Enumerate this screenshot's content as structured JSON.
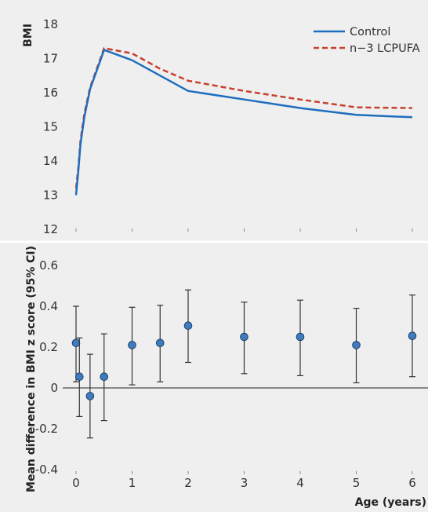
{
  "chart_data": [
    {
      "type": "line",
      "title": "",
      "xlabel": "",
      "ylabel": "BMI",
      "ylim": [
        12,
        18
      ],
      "yticks": [
        "12",
        "13",
        "14",
        "15",
        "16",
        "17",
        "18"
      ],
      "xlim": [
        -0.15,
        6.3
      ],
      "legend_position": "top-right",
      "grid": false,
      "series": [
        {
          "name": "Control",
          "color": "#1f6ebd",
          "style": "solid",
          "x": [
            0,
            0.04,
            0.08,
            0.15,
            0.25,
            0.5,
            1,
            1.5,
            2,
            3,
            4,
            5,
            6
          ],
          "y": [
            13.0,
            13.7,
            14.5,
            15.3,
            16.1,
            17.25,
            16.95,
            16.5,
            16.05,
            15.8,
            15.55,
            15.35,
            15.28
          ]
        },
        {
          "name": "n−3 LCPUFA",
          "color": "#c8402c",
          "style": "dashed",
          "x": [
            0,
            0.04,
            0.08,
            0.15,
            0.25,
            0.5,
            1,
            1.5,
            2,
            3,
            4,
            5,
            6
          ],
          "y": [
            13.2,
            13.8,
            14.6,
            15.4,
            16.15,
            17.3,
            17.15,
            16.7,
            16.35,
            16.05,
            15.8,
            15.57,
            15.55
          ]
        }
      ]
    },
    {
      "type": "scatter",
      "title": "",
      "xlabel": "Age (years)",
      "ylabel": "Mean difference in BMI z score (95% CI)",
      "ylim": [
        -0.4,
        0.6
      ],
      "yticks": [
        "-0.4",
        "-0.2",
        "0",
        "0.2",
        "0.4",
        "0.6"
      ],
      "xticks": [
        "0",
        "1",
        "2",
        "3",
        "4",
        "5",
        "6"
      ],
      "xlim": [
        -0.15,
        6.3
      ],
      "grid": false,
      "reference_line": 0,
      "marker_color": "#3f7cbf",
      "points": [
        {
          "x": 0,
          "y": 0.22,
          "lo": 0.03,
          "hi": 0.4
        },
        {
          "x": 0.06,
          "y": 0.055,
          "lo": -0.14,
          "hi": 0.245
        },
        {
          "x": 0.25,
          "y": -0.04,
          "lo": -0.245,
          "hi": 0.165
        },
        {
          "x": 0.5,
          "y": 0.055,
          "lo": -0.16,
          "hi": 0.265
        },
        {
          "x": 1,
          "y": 0.21,
          "lo": 0.015,
          "hi": 0.395
        },
        {
          "x": 1.5,
          "y": 0.22,
          "lo": 0.03,
          "hi": 0.405
        },
        {
          "x": 2,
          "y": 0.305,
          "lo": 0.125,
          "hi": 0.48
        },
        {
          "x": 3,
          "y": 0.25,
          "lo": 0.07,
          "hi": 0.42
        },
        {
          "x": 4,
          "y": 0.25,
          "lo": 0.06,
          "hi": 0.43
        },
        {
          "x": 5,
          "y": 0.21,
          "lo": 0.025,
          "hi": 0.39
        },
        {
          "x": 6,
          "y": 0.255,
          "lo": 0.055,
          "hi": 0.455
        }
      ]
    }
  ]
}
